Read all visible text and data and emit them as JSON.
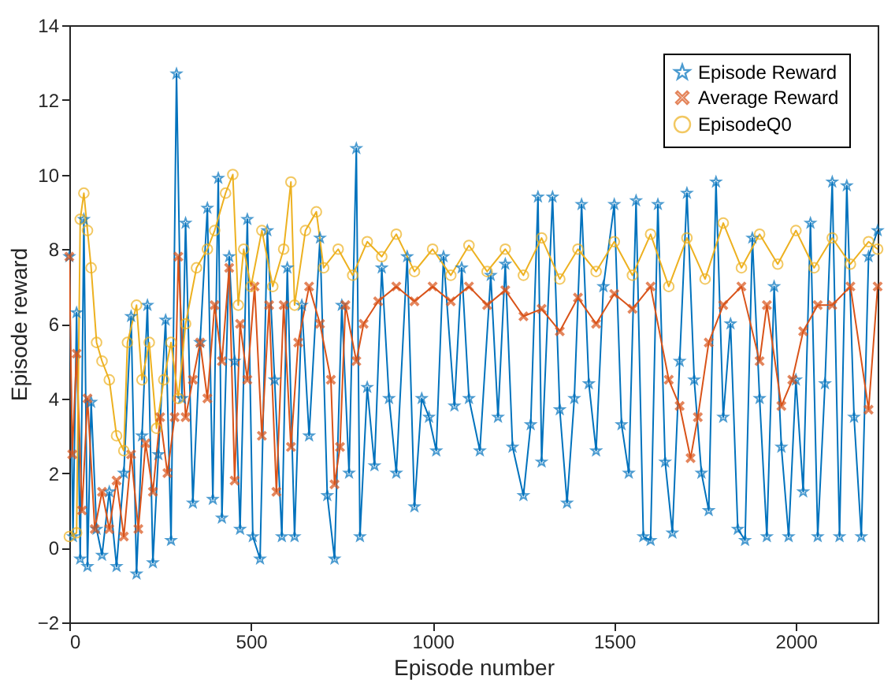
{
  "chart_data": {
    "type": "line",
    "xlabel": "Episode number",
    "ylabel": "Episode reward",
    "xlim": [
      0,
      2225
    ],
    "ylim": [
      -2,
      14
    ],
    "xticks": [
      0,
      500,
      1000,
      1500,
      2000
    ],
    "yticks": [
      -2,
      0,
      2,
      4,
      6,
      8,
      10,
      12,
      14
    ],
    "grid": false,
    "legend": "top right",
    "series": [
      {
        "name": "Episode Reward",
        "color": "#0072bd",
        "marker": "star",
        "x": [
          0,
          10,
          20,
          30,
          40,
          50,
          60,
          75,
          90,
          110,
          130,
          150,
          170,
          185,
          200,
          215,
          230,
          245,
          265,
          280,
          295,
          310,
          320,
          340,
          360,
          380,
          395,
          410,
          420,
          440,
          455,
          470,
          490,
          505,
          525,
          545,
          565,
          585,
          600,
          620,
          640,
          660,
          690,
          710,
          730,
          750,
          770,
          790,
          800,
          820,
          840,
          860,
          880,
          900,
          930,
          950,
          970,
          990,
          1010,
          1030,
          1060,
          1080,
          1100,
          1130,
          1160,
          1180,
          1200,
          1220,
          1250,
          1270,
          1290,
          1300,
          1330,
          1350,
          1370,
          1390,
          1410,
          1430,
          1450,
          1470,
          1500,
          1520,
          1540,
          1560,
          1580,
          1600,
          1620,
          1640,
          1660,
          1680,
          1700,
          1720,
          1740,
          1760,
          1780,
          1800,
          1820,
          1840,
          1860,
          1880,
          1900,
          1920,
          1940,
          1960,
          1980,
          2000,
          2020,
          2040,
          2060,
          2080,
          2100,
          2120,
          2140,
          2160,
          2180,
          2200,
          2225
        ],
        "values": [
          7.8,
          0.3,
          6.3,
          -0.3,
          8.8,
          -0.5,
          3.9,
          0.5,
          -0.2,
          1.5,
          -0.5,
          2.0,
          6.2,
          -0.7,
          3.0,
          6.5,
          -0.4,
          2.5,
          6.1,
          0.2,
          12.7,
          4.0,
          8.7,
          1.2,
          5.5,
          9.1,
          1.3,
          9.9,
          0.8,
          7.8,
          5.0,
          0.5,
          8.8,
          0.3,
          -0.3,
          8.5,
          4.5,
          0.3,
          7.5,
          0.3,
          6.5,
          3.0,
          8.3,
          1.4,
          -0.3,
          6.5,
          2.0,
          10.7,
          0.3,
          4.3,
          2.2,
          7.5,
          4.0,
          2.0,
          7.8,
          1.1,
          4.0,
          3.5,
          2.6,
          7.8,
          3.8,
          7.5,
          4.0,
          2.6,
          7.3,
          3.5,
          7.6,
          2.7,
          1.4,
          3.3,
          9.4,
          2.3,
          9.4,
          3.7,
          1.2,
          4.0,
          9.2,
          4.4,
          2.6,
          7.0,
          9.2,
          3.3,
          2.0,
          9.3,
          0.3,
          0.2,
          9.2,
          2.3,
          0.4,
          5.0,
          9.5,
          4.5,
          2.0,
          1.0,
          9.8,
          3.5,
          6.0,
          0.5,
          0.2,
          8.3,
          4.0,
          0.3,
          7.0,
          2.7,
          0.3,
          4.5,
          1.5,
          8.7,
          0.3,
          4.4,
          9.8,
          0.3,
          9.7,
          3.5,
          0.3,
          7.8,
          8.5
        ]
      },
      {
        "name": "Average Reward",
        "color": "#d95319",
        "marker": "cross",
        "x": [
          0,
          8,
          20,
          35,
          50,
          70,
          90,
          110,
          130,
          150,
          170,
          190,
          210,
          230,
          250,
          270,
          290,
          300,
          320,
          340,
          360,
          380,
          400,
          420,
          440,
          455,
          470,
          490,
          510,
          530,
          550,
          570,
          590,
          610,
          630,
          660,
          690,
          720,
          730,
          745,
          760,
          790,
          810,
          850,
          900,
          950,
          1000,
          1050,
          1100,
          1150,
          1200,
          1250,
          1300,
          1350,
          1400,
          1450,
          1500,
          1550,
          1600,
          1650,
          1680,
          1710,
          1730,
          1760,
          1800,
          1850,
          1900,
          1920,
          1960,
          1990,
          2020,
          2060,
          2100,
          2150,
          2200,
          2225
        ],
        "values": [
          7.8,
          2.5,
          5.2,
          1.0,
          4.0,
          0.5,
          1.5,
          0.5,
          1.8,
          0.3,
          2.5,
          0.5,
          2.8,
          1.5,
          3.5,
          2.0,
          3.5,
          7.8,
          3.5,
          4.5,
          5.5,
          4.0,
          6.5,
          5.0,
          7.5,
          1.8,
          6.0,
          4.5,
          7.0,
          3.0,
          6.5,
          1.5,
          6.5,
          2.7,
          5.5,
          7.0,
          6.0,
          4.5,
          1.7,
          2.7,
          6.5,
          5.0,
          6.0,
          6.6,
          7.0,
          6.6,
          7.0,
          6.6,
          7.0,
          6.5,
          6.9,
          6.2,
          6.4,
          5.8,
          6.7,
          6.0,
          6.8,
          6.4,
          7.0,
          4.5,
          3.8,
          2.4,
          3.5,
          5.5,
          6.5,
          7.0,
          5.0,
          6.5,
          3.8,
          4.5,
          5.8,
          6.5,
          6.5,
          7.0,
          3.7,
          7.0
        ]
      },
      {
        "name": "EpisodeQ0",
        "color": "#edb120",
        "marker": "circle",
        "x": [
          0,
          20,
          30,
          40,
          50,
          60,
          75,
          90,
          110,
          130,
          150,
          160,
          185,
          200,
          220,
          240,
          260,
          280,
          300,
          320,
          350,
          380,
          400,
          430,
          450,
          465,
          480,
          500,
          530,
          560,
          590,
          610,
          620,
          650,
          680,
          700,
          740,
          780,
          820,
          860,
          900,
          950,
          1000,
          1050,
          1100,
          1150,
          1200,
          1250,
          1300,
          1350,
          1400,
          1450,
          1500,
          1550,
          1600,
          1650,
          1700,
          1750,
          1800,
          1850,
          1900,
          1950,
          2000,
          2050,
          2100,
          2150,
          2200,
          2225
        ],
        "values": [
          0.3,
          0.4,
          8.8,
          9.5,
          8.5,
          7.5,
          5.5,
          5.0,
          4.5,
          3.0,
          2.6,
          5.5,
          6.5,
          4.5,
          5.5,
          3.2,
          4.5,
          5.5,
          4.0,
          6.0,
          7.5,
          8.0,
          8.5,
          9.5,
          10.0,
          6.5,
          8.0,
          7.0,
          8.5,
          7.0,
          8.0,
          9.8,
          6.5,
          8.5,
          9.0,
          7.5,
          8.0,
          7.3,
          8.2,
          7.8,
          8.4,
          7.4,
          8.0,
          7.3,
          8.1,
          7.4,
          8.0,
          7.3,
          8.3,
          7.2,
          8.0,
          7.4,
          8.2,
          7.3,
          8.4,
          7.0,
          8.3,
          7.2,
          8.7,
          7.5,
          8.4,
          7.6,
          8.5,
          7.5,
          8.3,
          7.6,
          8.2,
          8.0
        ]
      }
    ]
  }
}
